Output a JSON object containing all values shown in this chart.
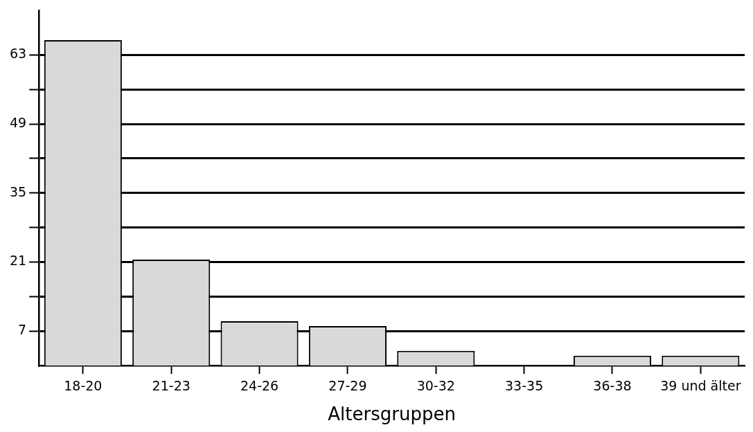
{
  "chart_data": {
    "type": "bar",
    "xlabel": "Altersgruppen",
    "categories": [
      "18-20",
      "21-23",
      "24-26",
      "27-29",
      "30-32",
      "33-35",
      "36-38",
      "39 und älter"
    ],
    "values": [
      66,
      21.5,
      9,
      8,
      3,
      0,
      2,
      2
    ],
    "color": "#d9d9d9",
    "ylim": [
      0,
      72
    ],
    "yticks": [
      7,
      {
        "value": 14,
        "label": null
      },
      21,
      {
        "value": 28,
        "label": null
      },
      35,
      {
        "value": 42,
        "label": null
      },
      49,
      {
        "value": 56,
        "label": null
      },
      63
    ],
    "grid": true,
    "legend": false
  }
}
